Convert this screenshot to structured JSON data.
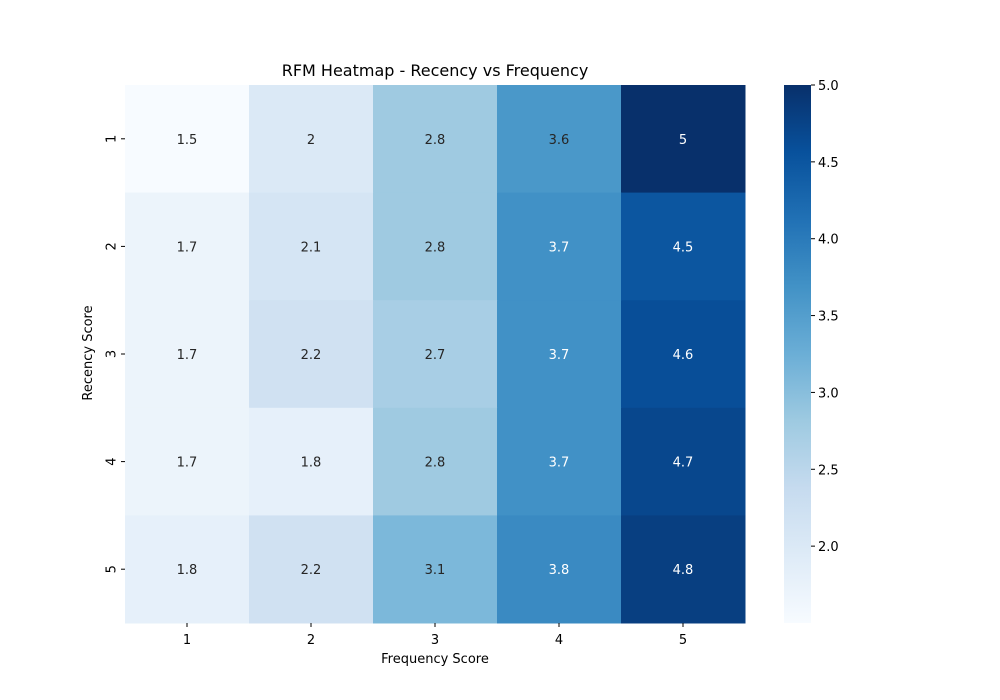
{
  "chart_data": {
    "type": "heatmap",
    "title": "RFM Heatmap - Recency vs Frequency",
    "xlabel": "Frequency Score",
    "ylabel": "Recency Score",
    "x_categories": [
      "1",
      "2",
      "3",
      "4",
      "5"
    ],
    "y_categories": [
      "1",
      "2",
      "3",
      "4",
      "5"
    ],
    "values": [
      [
        1.5,
        2.0,
        2.8,
        3.6,
        5.0
      ],
      [
        1.7,
        2.1,
        2.8,
        3.7,
        4.5
      ],
      [
        1.7,
        2.2,
        2.7,
        3.7,
        4.6
      ],
      [
        1.7,
        1.8,
        2.8,
        3.7,
        4.7
      ],
      [
        1.8,
        2.2,
        3.1,
        3.8,
        4.8
      ]
    ],
    "cell_labels": [
      [
        "1.5",
        "2",
        "2.8",
        "3.6",
        "5"
      ],
      [
        "1.7",
        "2.1",
        "2.8",
        "3.7",
        "4.5"
      ],
      [
        "1.7",
        "2.2",
        "2.7",
        "3.7",
        "4.6"
      ],
      [
        "1.7",
        "1.8",
        "2.8",
        "3.7",
        "4.7"
      ],
      [
        "1.8",
        "2.2",
        "3.1",
        "3.8",
        "4.8"
      ]
    ],
    "colorbar": {
      "colormap": "Blues",
      "range": [
        1.5,
        5.0
      ],
      "tick_values": [
        2.0,
        2.5,
        3.0,
        3.5,
        4.0,
        4.5,
        5.0
      ],
      "tick_labels": [
        "2.0",
        "2.5",
        "3.0",
        "3.5",
        "4.0",
        "4.5",
        "5.0"
      ]
    },
    "grid": false
  }
}
